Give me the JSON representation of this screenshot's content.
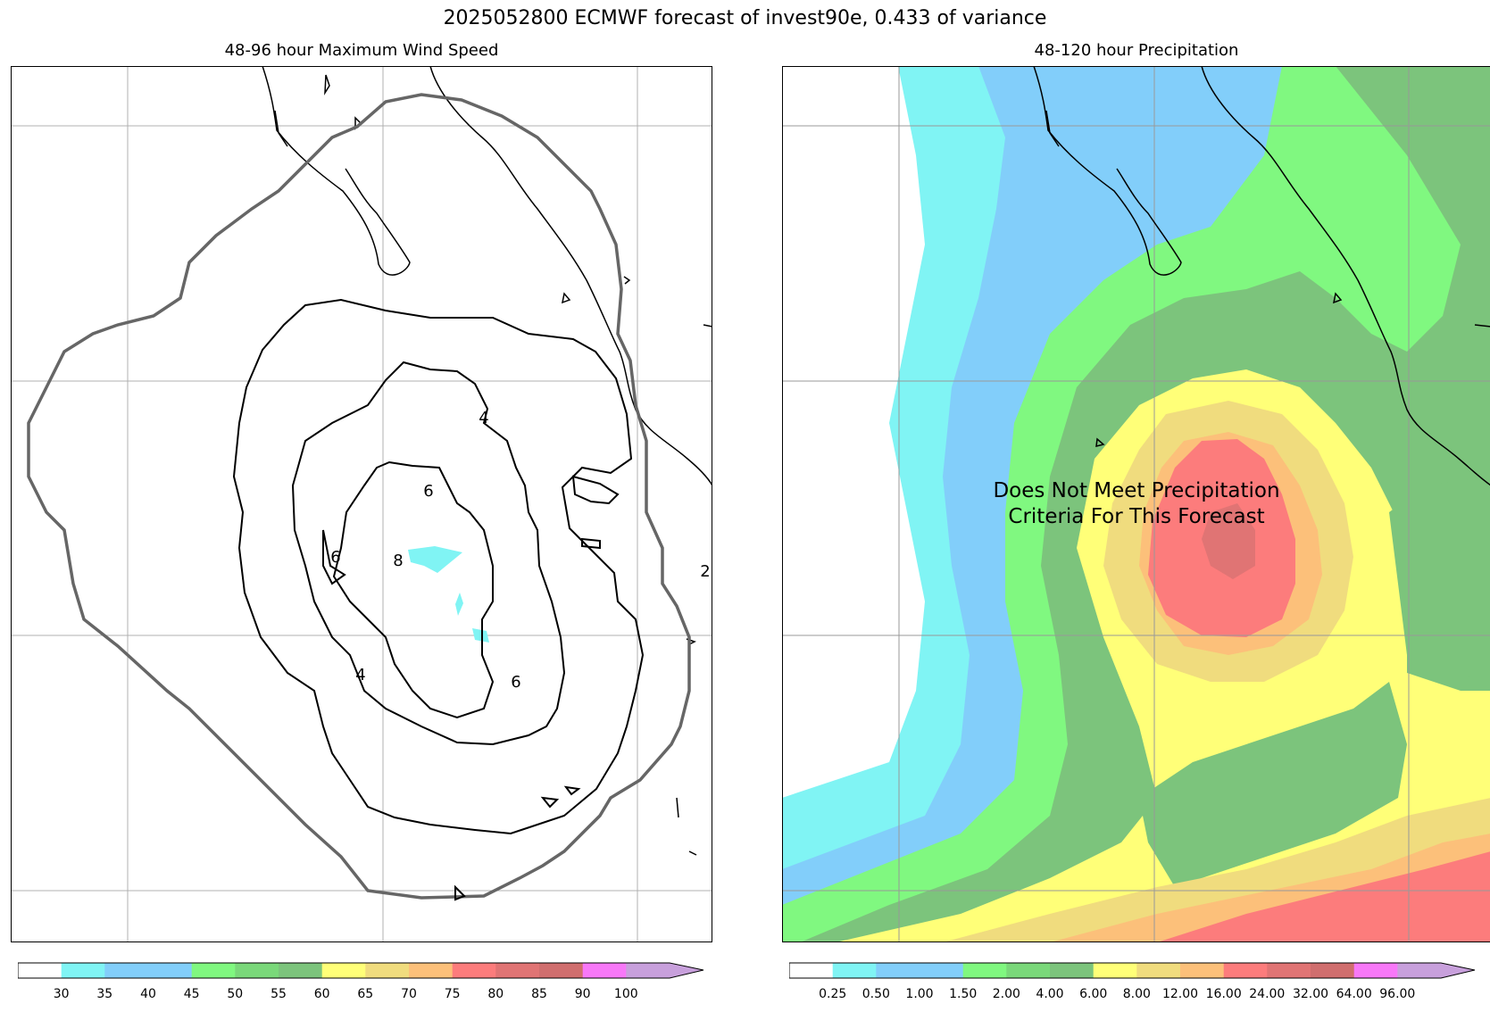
{
  "figure": {
    "title": "2025052800 ECMWF forecast of invest90e, 0.433 of variance"
  },
  "left_panel": {
    "title": "48-96 hour Maximum Wind Speed",
    "contour_labels": [
      "4",
      "6",
      "6",
      "8",
      "4",
      "6",
      "2"
    ],
    "colorbar": {
      "ticks": [
        "30",
        "35",
        "40",
        "45",
        "50",
        "55",
        "60",
        "65",
        "70",
        "75",
        "80",
        "85",
        "90",
        "100"
      ],
      "colors": [
        "#ffffff",
        "#80f4f4",
        "#82cefa",
        "#82cefa",
        "#80f880",
        "#7ad87a",
        "#7cc47c",
        "#ffff78",
        "#f0dc7e",
        "#fcc07a",
        "#fc7c7c",
        "#e07474",
        "#d06e6e",
        "#f878f8",
        "#c8a0dc"
      ]
    }
  },
  "right_panel": {
    "title": "48-120 hour Precipitation",
    "message_line1": "Does Not Meet Precipitation",
    "message_line2": "Criteria For This Forecast",
    "colorbar": {
      "ticks": [
        "0.25",
        "0.50",
        "1.00",
        "1.50",
        "2.00",
        "4.00",
        "6.00",
        "8.00",
        "12.00",
        "16.00",
        "24.00",
        "32.00",
        "64.00",
        "96.00"
      ],
      "colors": [
        "#ffffff",
        "#80f4f4",
        "#82cefa",
        "#82cefa",
        "#80f880",
        "#7ad87a",
        "#7cc47c",
        "#ffff78",
        "#f0dc7e",
        "#fcc07a",
        "#fc7c7c",
        "#e07474",
        "#d06e6e",
        "#f878f8",
        "#c8a0dc"
      ]
    }
  }
}
